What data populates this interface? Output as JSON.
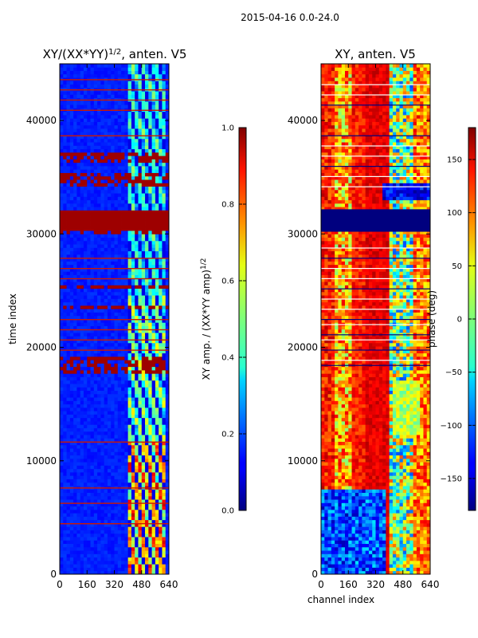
{
  "chart_data": {
    "type": "heatmap",
    "suptitle": "2015-04-16 0.0-24.0",
    "panels": [
      {
        "title_prefix": "XY/(XX*YY)",
        "title_exp": "1/2",
        "title_suffix": ", anten. V5",
        "ylabel": "time index",
        "xlim": [
          0,
          640
        ],
        "ylim": [
          0,
          45000
        ],
        "xticks": [
          0,
          160,
          320,
          480,
          640
        ],
        "yticks": [
          0,
          10000,
          20000,
          30000,
          40000
        ],
        "colorbar": {
          "label_prefix": "XY amp. / (XX*YY amp)",
          "label_exp": "1/2",
          "range": [
            0.0,
            1.0
          ],
          "ticks": [
            "0.0",
            "0.2",
            "0.4",
            "0.6",
            "0.8",
            "1.0"
          ]
        }
      },
      {
        "title": "XY, anten. V5",
        "xlabel": "channel index",
        "xlim": [
          0,
          640
        ],
        "ylim": [
          0,
          45000
        ],
        "xticks": [
          0,
          160,
          320,
          480,
          640
        ],
        "yticks": [
          0,
          10000,
          20000,
          30000,
          40000
        ],
        "colorbar": {
          "label": "phase (deg)",
          "range": [
            -180,
            180
          ],
          "ticks": [
            "−150",
            "−100",
            "−50",
            "0",
            "50",
            "100",
            "150"
          ]
        }
      }
    ]
  }
}
